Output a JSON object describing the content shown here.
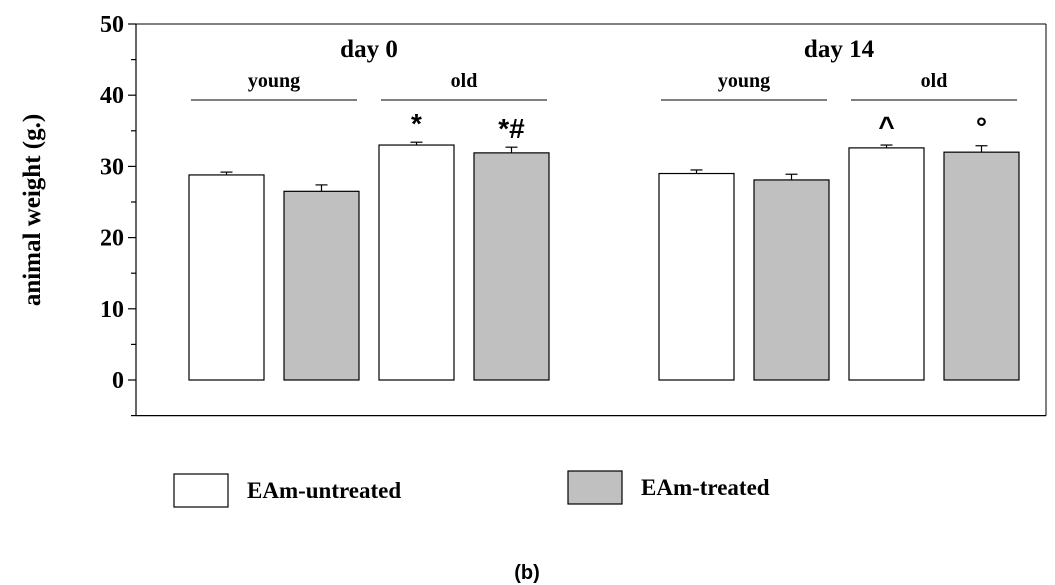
{
  "figure_label": "(b)",
  "chart_data": {
    "type": "bar",
    "ylabel": "animal weight (g.)",
    "ylim": [
      -5,
      50
    ],
    "yticks": [
      0,
      10,
      20,
      30,
      40,
      50
    ],
    "grid": false,
    "groups": [
      {
        "title": "day 0",
        "subgroups": [
          {
            "label": "young",
            "bars": [
              {
                "series": "EAm-untreated",
                "value": 28.8,
                "error": 0.4,
                "annotation": ""
              },
              {
                "series": "EAm-treated",
                "value": 26.5,
                "error": 0.9,
                "annotation": ""
              }
            ]
          },
          {
            "label": "old",
            "bars": [
              {
                "series": "EAm-untreated",
                "value": 33.0,
                "error": 0.4,
                "annotation": "*"
              },
              {
                "series": "EAm-treated",
                "value": 31.9,
                "error": 0.8,
                "annotation": "*#"
              }
            ]
          }
        ]
      },
      {
        "title": "day 14",
        "subgroups": [
          {
            "label": "young",
            "bars": [
              {
                "series": "EAm-untreated",
                "value": 29.0,
                "error": 0.5,
                "annotation": ""
              },
              {
                "series": "EAm-treated",
                "value": 28.1,
                "error": 0.8,
                "annotation": ""
              }
            ]
          },
          {
            "label": "old",
            "bars": [
              {
                "series": "EAm-untreated",
                "value": 32.6,
                "error": 0.4,
                "annotation": "^"
              },
              {
                "series": "EAm-treated",
                "value": 32.0,
                "error": 0.9,
                "annotation": "°"
              }
            ]
          }
        ]
      }
    ],
    "legend": {
      "position": "bottom",
      "entries": [
        {
          "name": "EAm-untreated",
          "color": "#ffffff"
        },
        {
          "name": "EAm-treated",
          "color": "#c0c0c0"
        }
      ]
    }
  }
}
